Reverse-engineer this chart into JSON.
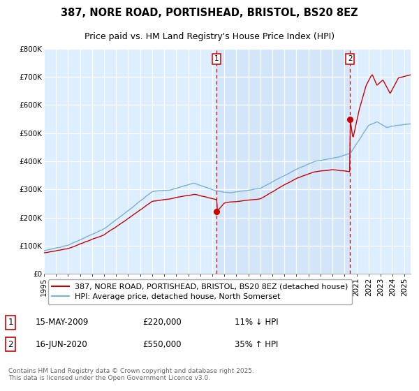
{
  "title": "387, NORE ROAD, PORTISHEAD, BRISTOL, BS20 8EZ",
  "subtitle": "Price paid vs. HM Land Registry's House Price Index (HPI)",
  "ylim": [
    0,
    800000
  ],
  "yticks": [
    0,
    100000,
    200000,
    300000,
    400000,
    500000,
    600000,
    700000,
    800000
  ],
  "ytick_labels": [
    "£0",
    "£100K",
    "£200K",
    "£300K",
    "£400K",
    "£500K",
    "£600K",
    "£700K",
    "£800K"
  ],
  "xlim_start": 1995,
  "xlim_end": 2025.5,
  "xticks": [
    1995,
    1996,
    1997,
    1998,
    1999,
    2000,
    2001,
    2002,
    2003,
    2004,
    2005,
    2006,
    2007,
    2008,
    2009,
    2010,
    2011,
    2012,
    2013,
    2014,
    2015,
    2016,
    2017,
    2018,
    2019,
    2020,
    2021,
    2022,
    2023,
    2024,
    2025
  ],
  "red_line_color": "#cc0000",
  "blue_line_color": "#7ab0d4",
  "background_color": "#ffffff",
  "plot_bg_color": "#ddeeff",
  "grid_color": "#ffffff",
  "marker1_date": 2009.37,
  "marker1_price": 220000,
  "marker2_date": 2020.46,
  "marker2_price": 550000,
  "vline1_x": 2009.37,
  "vline2_x": 2020.46,
  "shaded_start": 2009.37,
  "shaded_end": 2020.46,
  "legend_label_red": "387, NORE ROAD, PORTISHEAD, BRISTOL, BS20 8EZ (detached house)",
  "legend_label_blue": "HPI: Average price, detached house, North Somerset",
  "note1_num": "1",
  "note1_date": "15-MAY-2009",
  "note1_price": "£220,000",
  "note1_pct": "11% ↓ HPI",
  "note2_num": "2",
  "note2_date": "16-JUN-2020",
  "note2_price": "£550,000",
  "note2_pct": "35% ↑ HPI",
  "footer": "Contains HM Land Registry data © Crown copyright and database right 2025.\nThis data is licensed under the Open Government Licence v3.0.",
  "title_fontsize": 10.5,
  "subtitle_fontsize": 9,
  "tick_fontsize": 7.5,
  "legend_fontsize": 8,
  "note_fontsize": 8.5,
  "footer_fontsize": 6.5
}
